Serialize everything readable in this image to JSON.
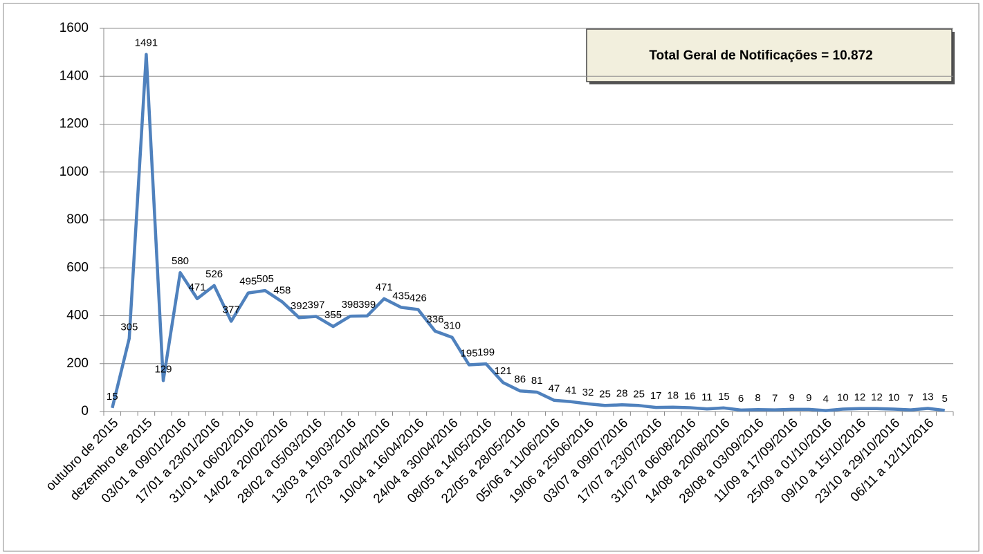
{
  "chart_data": {
    "type": "line",
    "annotation": "Total Geral de Notificações = 10.872",
    "categories": [
      "outubro de 2015",
      null,
      "dezembro de 2015",
      null,
      "03/01 a 09/01/2016",
      null,
      "17/01 a 23/01/2016",
      null,
      "31/01 a 06/02/2016",
      null,
      "14/02 a 20/02/2016",
      null,
      "28/02 a 05/03/2016",
      null,
      "13/03 a 19/03/2016",
      null,
      "27/03 a 02/04/2016",
      null,
      "10/04 a 16/04/2016",
      null,
      "24/04 a 30/04/2016",
      null,
      "08/05 a 14/05/2016",
      null,
      "22/05 a 28/05/2016",
      null,
      "05/06 a 11/06/2016",
      null,
      "19/06 a 25/06/2016",
      null,
      "03/07 a 09/07/2016",
      null,
      "17/07 a 23/07/2016",
      null,
      "31/07 a 06/08/2016",
      null,
      "14/08 a 20/08/2016",
      null,
      "28/08 a 03/09/2016",
      null,
      "11/09 a 17/09/2016",
      null,
      "25/09 a 01/10/2016",
      null,
      "09/10 a 15/10/2016",
      null,
      "23/10 a 29/10/2016",
      null,
      "06/11 a 12/11/2016",
      null
    ],
    "values": [
      15,
      305,
      1491,
      129,
      580,
      471,
      526,
      377,
      495,
      505,
      458,
      392,
      397,
      355,
      398,
      399,
      471,
      435,
      426,
      336,
      310,
      195,
      199,
      121,
      86,
      81,
      47,
      41,
      32,
      25,
      28,
      25,
      17,
      18,
      16,
      11,
      15,
      6,
      8,
      7,
      9,
      9,
      4,
      10,
      12,
      12,
      10,
      7,
      13,
      5
    ],
    "color": "#4f81bd",
    "ylim": [
      0,
      1600
    ],
    "yticks": [
      0,
      200,
      400,
      600,
      800,
      1000,
      1200,
      1400,
      1600
    ],
    "grid": true
  }
}
